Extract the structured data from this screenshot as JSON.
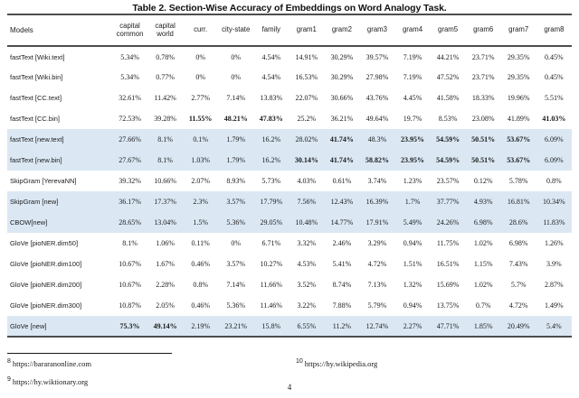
{
  "caption": "Table 2. Section-Wise Accuracy of Embeddings on Word Analogy Task.",
  "page_number": "4",
  "colors": {
    "highlight_row": "#dbe8f4",
    "rule_heavy": "#4d4d4d",
    "footnote_rule": "#161616"
  },
  "table": {
    "columns": [
      "Models",
      "capital common",
      "capital world",
      "curr.",
      "city-state",
      "family",
      "gram1",
      "gram2",
      "gram3",
      "gram4",
      "gram5",
      "gram6",
      "gram7",
      "gram8"
    ],
    "rows": [
      {
        "model": "fastText [Wiki.text]",
        "highlight": false,
        "bold": [],
        "values": [
          "5.34%",
          "0.78%",
          "0%",
          "0%",
          "4.54%",
          "14.91%",
          "30.29%",
          "39.57%",
          "7.19%",
          "44.21%",
          "23.71%",
          "29.35%",
          "0.45%"
        ]
      },
      {
        "model": "fastText [Wiki.bin]",
        "highlight": false,
        "bold": [],
        "values": [
          "5.34%",
          "0.77%",
          "0%",
          "0%",
          "4.54%",
          "16.53%",
          "30.29%",
          "27.98%",
          "7.19%",
          "47.52%",
          "23.71%",
          "29.35%",
          "0.45%"
        ]
      },
      {
        "model": "fastText [CC.text]",
        "highlight": false,
        "bold": [],
        "values": [
          "32.61%",
          "11.42%",
          "2.77%",
          "7.14%",
          "13.83%",
          "22.07%",
          "30.66%",
          "43.76%",
          "4.45%",
          "41.58%",
          "18.33%",
          "19.96%",
          "5.51%"
        ]
      },
      {
        "model": "fastText [CC.bin]",
        "highlight": false,
        "bold": [
          2,
          3,
          4,
          12
        ],
        "values": [
          "72.53%",
          "39.28%",
          "11.55%",
          "48.21%",
          "47.83%",
          "25.2%",
          "36.21%",
          "49.64%",
          "19.7%",
          "8.53%",
          "23.08%",
          "41.89%",
          "41.03%"
        ]
      },
      {
        "model": "fastText [new.text]",
        "highlight": true,
        "bold": [
          6,
          8,
          9,
          10,
          11
        ],
        "values": [
          "27.66%",
          "8.1%",
          "0.1%",
          "1.79%",
          "16.2%",
          "28.02%",
          "41.74%",
          "48.3%",
          "23.95%",
          "54.59%",
          "50.51%",
          "53.67%",
          "6.09%"
        ]
      },
      {
        "model": "fastText [new.bin]",
        "highlight": true,
        "bold": [
          5,
          6,
          7,
          8,
          9,
          10,
          11
        ],
        "values": [
          "27.67%",
          "8.1%",
          "1.03%",
          "1.79%",
          "16.2%",
          "30.14%",
          "41.74%",
          "58.82%",
          "23.95%",
          "54.59%",
          "50.51%",
          "53.67%",
          "6.09%"
        ]
      },
      {
        "model": "SkipGram [YerevaNN]",
        "highlight": false,
        "bold": [],
        "values": [
          "39.32%",
          "10.66%",
          "2.07%",
          "8.93%",
          "5.73%",
          "4.03%",
          "0.61%",
          "3.74%",
          "1.23%",
          "23.57%",
          "0.12%",
          "5.78%",
          "0.8%"
        ]
      },
      {
        "model": "SkipGram [new]",
        "highlight": true,
        "bold": [],
        "values": [
          "36.17%",
          "17.37%",
          "2.3%",
          "3.57%",
          "17.79%",
          "7.56%",
          "12.43%",
          "16.39%",
          "1.7%",
          "37.77%",
          "4.93%",
          "16.81%",
          "10.34%"
        ]
      },
      {
        "model": "CBOW[new]",
        "highlight": true,
        "bold": [],
        "values": [
          "28.65%",
          "13.04%",
          "1.5%",
          "5.36%",
          "29.05%",
          "10.48%",
          "14.77%",
          "17.91%",
          "5.49%",
          "24.26%",
          "6.98%",
          "28.6%",
          "11.83%"
        ]
      },
      {
        "model": "GloVe [pioNER.dim50]",
        "highlight": false,
        "bold": [],
        "values": [
          "8.1%",
          "1.06%",
          "0.11%",
          "0%",
          "6.71%",
          "3.32%",
          "2.46%",
          "3.29%",
          "0.94%",
          "11.75%",
          "1.02%",
          "6.98%",
          "1.26%"
        ]
      },
      {
        "model": "GloVe [pioNER.dim100]",
        "highlight": false,
        "bold": [],
        "values": [
          "10.67%",
          "1.67%",
          "0.46%",
          "3.57%",
          "10.27%",
          "4.53%",
          "5.41%",
          "4.72%",
          "1.51%",
          "16.51%",
          "1.15%",
          "7.43%",
          "3.9%"
        ]
      },
      {
        "model": "GloVe [pioNER.dim200]",
        "highlight": false,
        "bold": [],
        "values": [
          "10.67%",
          "2.28%",
          "0.8%",
          "7.14%",
          "11.66%",
          "3.52%",
          "8.74%",
          "7.13%",
          "1.32%",
          "15.69%",
          "1.02%",
          "5.7%",
          "2.87%"
        ]
      },
      {
        "model": "GloVe [pioNER.dim300]",
        "highlight": false,
        "bold": [],
        "values": [
          "10.87%",
          "2.05%",
          "0.46%",
          "5.36%",
          "11.46%",
          "3.22%",
          "7.88%",
          "5.79%",
          "0.94%",
          "13.75%",
          "0.7%",
          "4.72%",
          "1.49%"
        ]
      },
      {
        "model": "GloVe [new]",
        "highlight": true,
        "bold": [
          0,
          1
        ],
        "values": [
          "75.3%",
          "49.14%",
          "2.19%",
          "23.21%",
          "15.8%",
          "6.55%",
          "11.2%",
          "12.74%",
          "2.27%",
          "47.71%",
          "1.85%",
          "20.49%",
          "5.4%"
        ]
      }
    ]
  },
  "footnotes": [
    {
      "marker": "8",
      "text": "https://bararanonline.com"
    },
    {
      "marker": "9",
      "text": "https://hy.wiktionary.org"
    },
    {
      "marker": "10",
      "text": "https://hy.wikipedia.org"
    }
  ]
}
